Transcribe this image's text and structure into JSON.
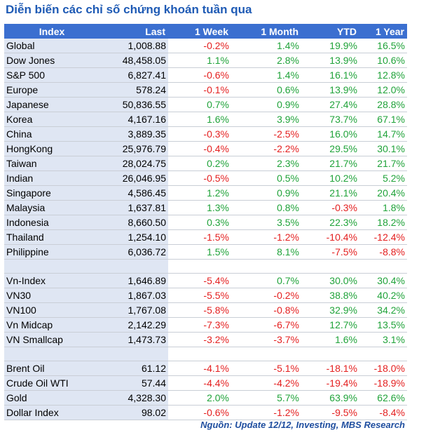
{
  "title": "Diễn biến các chỉ số chứng khoán tuần qua",
  "columns": [
    "Index",
    "Last",
    "1 Week",
    "1 Month",
    "YTD",
    "1 Year"
  ],
  "groups": [
    [
      [
        "Global",
        "1,008.88",
        "-0.2%",
        "1.4%",
        "19.9%",
        "16.5%"
      ],
      [
        "Dow Jones",
        "48,458.05",
        "1.1%",
        "2.8%",
        "13.9%",
        "10.6%"
      ],
      [
        "S&P 500",
        "6,827.41",
        "-0.6%",
        "1.4%",
        "16.1%",
        "12.8%"
      ],
      [
        "Europe",
        "578.24",
        "-0.1%",
        "0.6%",
        "13.9%",
        "12.0%"
      ],
      [
        "Japanese",
        "50,836.55",
        "0.7%",
        "0.9%",
        "27.4%",
        "28.8%"
      ],
      [
        "Korea",
        "4,167.16",
        "1.6%",
        "3.9%",
        "73.7%",
        "67.1%"
      ],
      [
        "China",
        "3,889.35",
        "-0.3%",
        "-2.5%",
        "16.0%",
        "14.7%"
      ],
      [
        "HongKong",
        "25,976.79",
        "-0.4%",
        "-2.2%",
        "29.5%",
        "30.1%"
      ],
      [
        "Taiwan",
        "28,024.75",
        "0.2%",
        "2.3%",
        "21.7%",
        "21.7%"
      ],
      [
        "Indian",
        "26,046.95",
        "-0.5%",
        "0.5%",
        "10.2%",
        "5.2%"
      ],
      [
        "Singapore",
        "4,586.45",
        "1.2%",
        "0.9%",
        "21.1%",
        "20.4%"
      ],
      [
        "Malaysia",
        "1,637.81",
        "1.3%",
        "0.8%",
        "-0.3%",
        "1.8%"
      ],
      [
        "Indonesia",
        "8,660.50",
        "0.3%",
        "3.5%",
        "22.3%",
        "18.2%"
      ],
      [
        "Thailand",
        "1,254.10",
        "-1.5%",
        "-1.2%",
        "-10.4%",
        "-12.4%"
      ],
      [
        "Philippine",
        "6,036.72",
        "1.5%",
        "8.1%",
        "-7.5%",
        "-8.8%"
      ]
    ],
    [
      [
        "Vn-Index",
        "1,646.89",
        "-5.4%",
        "0.7%",
        "30.0%",
        "30.4%"
      ],
      [
        "VN30",
        "1,867.03",
        "-5.5%",
        "-0.2%",
        "38.8%",
        "40.2%"
      ],
      [
        "VN100",
        "1,767.08",
        "-5.8%",
        "-0.8%",
        "32.9%",
        "34.2%"
      ],
      [
        "Vn Midcap",
        "2,142.29",
        "-7.3%",
        "-6.7%",
        "12.7%",
        "13.5%"
      ],
      [
        "VN Smallcap",
        "1,473.73",
        "-3.2%",
        "-3.7%",
        "1.6%",
        "3.1%"
      ]
    ],
    [
      [
        "Brent Oil",
        "61.12",
        "-4.1%",
        "-5.1%",
        "-18.1%",
        "-18.0%"
      ],
      [
        "Crude Oil WTI",
        "57.44",
        "-4.4%",
        "-4.2%",
        "-19.4%",
        "-18.9%"
      ],
      [
        "Gold",
        "4,328.30",
        "2.0%",
        "5.7%",
        "63.9%",
        "62.6%"
      ],
      [
        "Dollar Index",
        "98.02",
        "-0.6%",
        "-1.2%",
        "-9.5%",
        "-8.4%"
      ]
    ]
  ],
  "source": "Nguồn: Update 12/12, Investing, MBS Research",
  "colors": {
    "header_bg": "#3b6fd0",
    "up": "#20a33a",
    "down": "#e41f1f",
    "title": "#1f5bb5"
  }
}
